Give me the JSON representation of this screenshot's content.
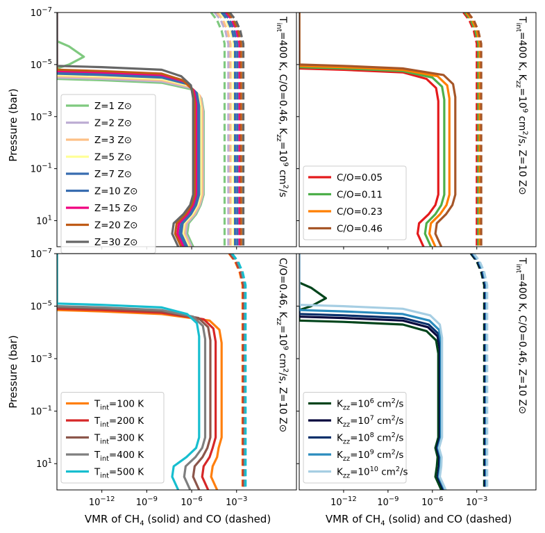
{
  "figure": {
    "shared_xlabel_main": "VMR of CH",
    "shared_xlabel_sub4": "4",
    "shared_xlabel_rest": " (solid) and CO (dashed)",
    "shared_ylabel": "Pressure (bar)"
  },
  "chart_data": [
    {
      "type": "line",
      "panel": "top-left",
      "x_scale": "log10",
      "y_scale": "log10",
      "y_inverted": true,
      "xlim_exp": [
        -15,
        1
      ],
      "ylim_exp": [
        -7,
        2
      ],
      "xlabel": "",
      "ylabel": "Pressure (bar)",
      "x_ticks": [],
      "y_ticks": [
        "10^-7",
        "10^-5",
        "10^-3",
        "10^-1",
        "10^1"
      ],
      "annotation": "T_int=400 K, C/O=0.46, K_zz=10^9 cm^2/s",
      "legend_position": "center-left",
      "series": [
        {
          "name": "Z=1 Z⊙",
          "color": "#7fc97f",
          "ch4_upper": -15,
          "transition_p": -4.1,
          "ch4_plateau": -5.2,
          "ch4_deep": -6.2,
          "co_vmr": -3.8,
          "upper_bump": true
        },
        {
          "name": "Z=2 Z⊙",
          "color": "#beaed4",
          "ch4_upper": -15,
          "transition_p": -4.15,
          "ch4_plateau": -5.25,
          "ch4_deep": -6.3,
          "co_vmr": -3.55
        },
        {
          "name": "Z=3 Z⊙",
          "color": "#fdc086",
          "ch4_upper": -15,
          "transition_p": -4.2,
          "ch4_plateau": -5.3,
          "ch4_deep": -6.4,
          "co_vmr": -3.4
        },
        {
          "name": "Z=5 Z⊙",
          "color": "#ffff99",
          "ch4_upper": -15,
          "transition_p": -4.25,
          "ch4_plateau": -5.4,
          "ch4_deep": -6.5,
          "co_vmr": -3.2
        },
        {
          "name": "Z=7 Z⊙",
          "color": "#386cb0",
          "ch4_upper": -15,
          "transition_p": -4.3,
          "ch4_plateau": -5.5,
          "ch4_deep": -6.6,
          "co_vmr": -3.1
        },
        {
          "name": "Z=10 Z⊙",
          "color": "#386cb0",
          "ch4_upper": -15,
          "transition_p": -4.35,
          "ch4_plateau": -5.6,
          "ch4_deep": -6.7,
          "co_vmr": -2.95
        },
        {
          "name": "Z=15 Z⊙",
          "color": "#f0027f",
          "ch4_upper": -15,
          "transition_p": -4.4,
          "ch4_plateau": -5.7,
          "ch4_deep": -6.85,
          "co_vmr": -2.8
        },
        {
          "name": "Z=20 Z⊙",
          "color": "#bf5b17",
          "ch4_upper": -15,
          "transition_p": -4.45,
          "ch4_plateau": -5.8,
          "ch4_deep": -7.0,
          "co_vmr": -2.7
        },
        {
          "name": "Z=30 Z⊙",
          "color": "#666666",
          "ch4_upper": -15,
          "transition_p": -4.6,
          "ch4_plateau": -5.9,
          "ch4_deep": -7.2,
          "co_vmr": -2.55
        }
      ]
    },
    {
      "type": "line",
      "panel": "top-right",
      "x_scale": "log10",
      "y_scale": "log10",
      "y_inverted": true,
      "xlim_exp": [
        -15,
        1
      ],
      "ylim_exp": [
        -7,
        2
      ],
      "xlabel": "",
      "ylabel": "",
      "x_ticks": [],
      "y_ticks": [],
      "annotation": "T_int=400 K, K_zz=10^9 cm^2/s, Z=10 Z⊙",
      "legend_position": "lower-left",
      "series": [
        {
          "name": "C/O=0.05",
          "color": "#e41a1c",
          "ch4_upper": -15,
          "transition_p": -4.5,
          "ch4_plateau": -5.6,
          "ch4_deep": -6.9,
          "co_vmr": -3.0
        },
        {
          "name": "C/O=0.11",
          "color": "#4daf4a",
          "ch4_upper": -15,
          "transition_p": -4.55,
          "ch4_plateau": -5.2,
          "ch4_deep": -6.4,
          "co_vmr": -2.9
        },
        {
          "name": "C/O=0.23",
          "color": "#ff7f00",
          "ch4_upper": -15,
          "transition_p": -4.6,
          "ch4_plateau": -4.85,
          "ch4_deep": -6.1,
          "co_vmr": -2.8
        },
        {
          "name": "C/O=0.46",
          "color": "#a65628",
          "ch4_upper": -15,
          "transition_p": -4.65,
          "ch4_plateau": -4.45,
          "ch4_deep": -5.7,
          "co_vmr": -2.7
        }
      ]
    },
    {
      "type": "line",
      "panel": "bottom-left",
      "x_scale": "log10",
      "y_scale": "log10",
      "y_inverted": true,
      "xlim_exp": [
        -15,
        1
      ],
      "ylim_exp": [
        -7,
        2
      ],
      "xlabel": "VMR of CH4 (solid) and CO (dashed)",
      "ylabel": "Pressure (bar)",
      "x_ticks": [
        "10^-12",
        "10^-9",
        "10^-6",
        "10^-3"
      ],
      "y_ticks": [
        "10^-7",
        "10^-5",
        "10^-3",
        "10^-1",
        "10^1"
      ],
      "annotation": "C/O=0.46, K_zz=10^9 cm^2/s, Z=10 Z⊙",
      "legend_position": "lower-left",
      "series": [
        {
          "name": "T_int=100 K",
          "color": "#ff7f0e",
          "ch4_upper": -15,
          "transition_p": -4.5,
          "ch4_plateau": -4.0,
          "ch4_deep": -4.6,
          "co_vmr": -2.6
        },
        {
          "name": "T_int=200 K",
          "color": "#d62728",
          "ch4_upper": -15,
          "transition_p": -4.55,
          "ch4_plateau": -4.4,
          "ch4_deep": -5.2,
          "co_vmr": -2.55
        },
        {
          "name": "T_int=300 K",
          "color": "#8c564b",
          "ch4_upper": -15,
          "transition_p": -4.6,
          "ch4_plateau": -4.75,
          "ch4_deep": -5.8,
          "co_vmr": -2.5
        },
        {
          "name": "T_int=400 K",
          "color": "#7f7f7f",
          "ch4_upper": -15,
          "transition_p": -4.65,
          "ch4_plateau": -5.1,
          "ch4_deep": -6.4,
          "co_vmr": -2.45
        },
        {
          "name": "T_int=500 K",
          "color": "#17becf",
          "ch4_upper": -15,
          "transition_p": -4.75,
          "ch4_plateau": -5.5,
          "ch4_deep": -7.2,
          "co_vmr": -2.4
        }
      ]
    },
    {
      "type": "line",
      "panel": "bottom-right",
      "x_scale": "log10",
      "y_scale": "log10",
      "y_inverted": true,
      "xlim_exp": [
        -15,
        1
      ],
      "ylim_exp": [
        -7,
        2
      ],
      "xlabel": "VMR of CH4 (solid) and CO (dashed)",
      "ylabel": "",
      "x_ticks": [
        "10^-12",
        "10^-9",
        "10^-6",
        "10^-3"
      ],
      "y_ticks": [],
      "annotation": "T_int=400 K, C/O=0.46, Z=10 Z⊙",
      "legend_position": "lower-left",
      "series": [
        {
          "name": "K_zz=10^6 cm^2/s",
          "color": "#00441b",
          "ch4_upper": -15,
          "transition_p": -4.1,
          "ch4_plateau": -5.6,
          "ch4_deep": -5.7,
          "co_vmr": -2.5,
          "upper_bump": true
        },
        {
          "name": "K_zz=10^7 cm^2/s",
          "color": "#08083d",
          "ch4_upper": -15,
          "transition_p": -4.25,
          "ch4_plateau": -5.5,
          "ch4_deep": -5.55,
          "co_vmr": -2.45
        },
        {
          "name": "K_zz=10^8 cm^2/s",
          "color": "#08306b",
          "ch4_upper": -15,
          "transition_p": -4.35,
          "ch4_plateau": -5.45,
          "ch4_deep": -5.5,
          "co_vmr": -2.4
        },
        {
          "name": "K_zz=10^9 cm^2/s",
          "color": "#2b8cbe",
          "ch4_upper": -15,
          "transition_p": -4.5,
          "ch4_plateau": -5.4,
          "ch4_deep": -5.45,
          "co_vmr": -2.35
        },
        {
          "name": "K_zz=10^10 cm^2/s",
          "color": "#a6cee3",
          "ch4_upper": -15,
          "transition_p": -4.7,
          "ch4_plateau": -5.35,
          "ch4_deep": -5.4,
          "co_vmr": -2.3
        }
      ]
    }
  ]
}
